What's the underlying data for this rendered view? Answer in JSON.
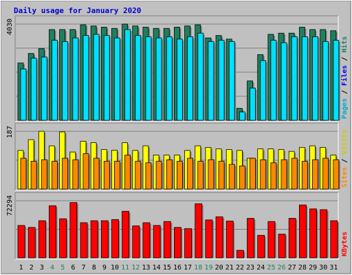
{
  "chart_data": {
    "type": "bar",
    "title": "Daily usage for January 2020",
    "categories": [
      "1",
      "2",
      "3",
      "4",
      "5",
      "6",
      "7",
      "8",
      "9",
      "10",
      "11",
      "12",
      "13",
      "14",
      "15",
      "16",
      "17",
      "18",
      "19",
      "20",
      "21",
      "22",
      "23",
      "24",
      "25",
      "26",
      "27",
      "28",
      "29",
      "30",
      "31"
    ],
    "weekend_days": [
      "4",
      "5",
      "11",
      "12",
      "18",
      "19",
      "25",
      "26"
    ],
    "panels": [
      {
        "id": "pages-files-hits",
        "ymax_label": "4030",
        "ylim": [
          0,
          4030
        ],
        "series": [
          {
            "name": "Hits",
            "color": "#1e8060",
            "values": [
              2400,
              2800,
              3000,
              3800,
              3800,
              3800,
              4000,
              3950,
              3900,
              3850,
              4030,
              3950,
              3900,
              3850,
              3850,
              3900,
              3950,
              4000,
              3450,
              3550,
              3400,
              500,
              1650,
              2750,
              3600,
              3650,
              3650,
              3900,
              3800,
              3800,
              3750
            ]
          },
          {
            "name": "Files",
            "color": "#00e0ff",
            "values": [
              2150,
              2600,
              2650,
              3350,
              3300,
              3450,
              3550,
              3600,
              3550,
              3450,
              3800,
              3550,
              3500,
              3450,
              3500,
              3400,
              3500,
              3650,
              3300,
              3350,
              3300,
              350,
              1350,
              2500,
              3350,
              3250,
              3500,
              3500,
              3500,
              3300,
              3350
            ]
          },
          {
            "name": "Pages",
            "color": "#00bbcc",
            "values": [
              0,
              0,
              0,
              0,
              0,
              0,
              0,
              0,
              0,
              0,
              0,
              0,
              0,
              0,
              0,
              0,
              0,
              0,
              0,
              0,
              0,
              0,
              0,
              0,
              0,
              0,
              0,
              0,
              0,
              0,
              0
            ]
          }
        ]
      },
      {
        "id": "sites-visits",
        "ymax_label": "187",
        "ylim": [
          0,
          187
        ],
        "series": [
          {
            "name": "Visits",
            "color": "#ffff00",
            "values": [
              125,
              160,
              187,
              140,
              185,
              120,
              155,
              150,
              128,
              126,
              150,
              125,
              140,
              110,
              110,
              110,
              125,
              140,
              135,
              130,
              128,
              125,
              100,
              130,
              130,
              128,
              122,
              135,
              140,
              135,
              110
            ]
          },
          {
            "name": "Sites",
            "color": "#ff8800",
            "values": [
              100,
              90,
              95,
              90,
              100,
              95,
              115,
              100,
              90,
              90,
              110,
              90,
              85,
              90,
              95,
              90,
              100,
              90,
              95,
              90,
              80,
              75,
              100,
              95,
              85,
              95,
              100,
              90,
              95,
              100,
              95
            ]
          }
        ]
      },
      {
        "id": "kbytes",
        "ymax_label": "72294",
        "ylim": [
          0,
          72294
        ],
        "series": [
          {
            "name": "KBytes",
            "color": "#ff0000",
            "values": [
              41000,
              38500,
              47000,
              66000,
              49500,
              70000,
              44500,
              47000,
              47000,
              48500,
              59000,
              40500,
              44500,
              41000,
              46000,
              38500,
              37000,
              68500,
              48000,
              52000,
              46500,
              9500,
              50000,
              28500,
              46000,
              30000,
              50000,
              67000,
              62000,
              61000,
              47000
            ]
          }
        ]
      }
    ],
    "right_labels": {
      "top": [
        {
          "text": "Pages",
          "color": "#00aacc"
        },
        {
          "text": " / ",
          "color": "#000000"
        },
        {
          "text": "Files",
          "color": "#0000ff"
        },
        {
          "text": " / ",
          "color": "#000000"
        },
        {
          "text": "Hits",
          "color": "#1e8060"
        }
      ],
      "middle": [
        {
          "text": "Sites",
          "color": "#ff8800"
        },
        {
          "text": " / ",
          "color": "#000000"
        },
        {
          "text": "Visits",
          "color": "#cccc00"
        }
      ],
      "bottom": [
        {
          "text": "KBytes",
          "color": "#ff0000"
        }
      ]
    },
    "colors": {
      "title": "#0000cc",
      "weekend_label": "#1e8060",
      "weekday_label": "#000000",
      "plot_bg": "#c0c0c0",
      "frame_bg": "#c0c0c0",
      "grid": "#808080"
    },
    "grid": true
  }
}
